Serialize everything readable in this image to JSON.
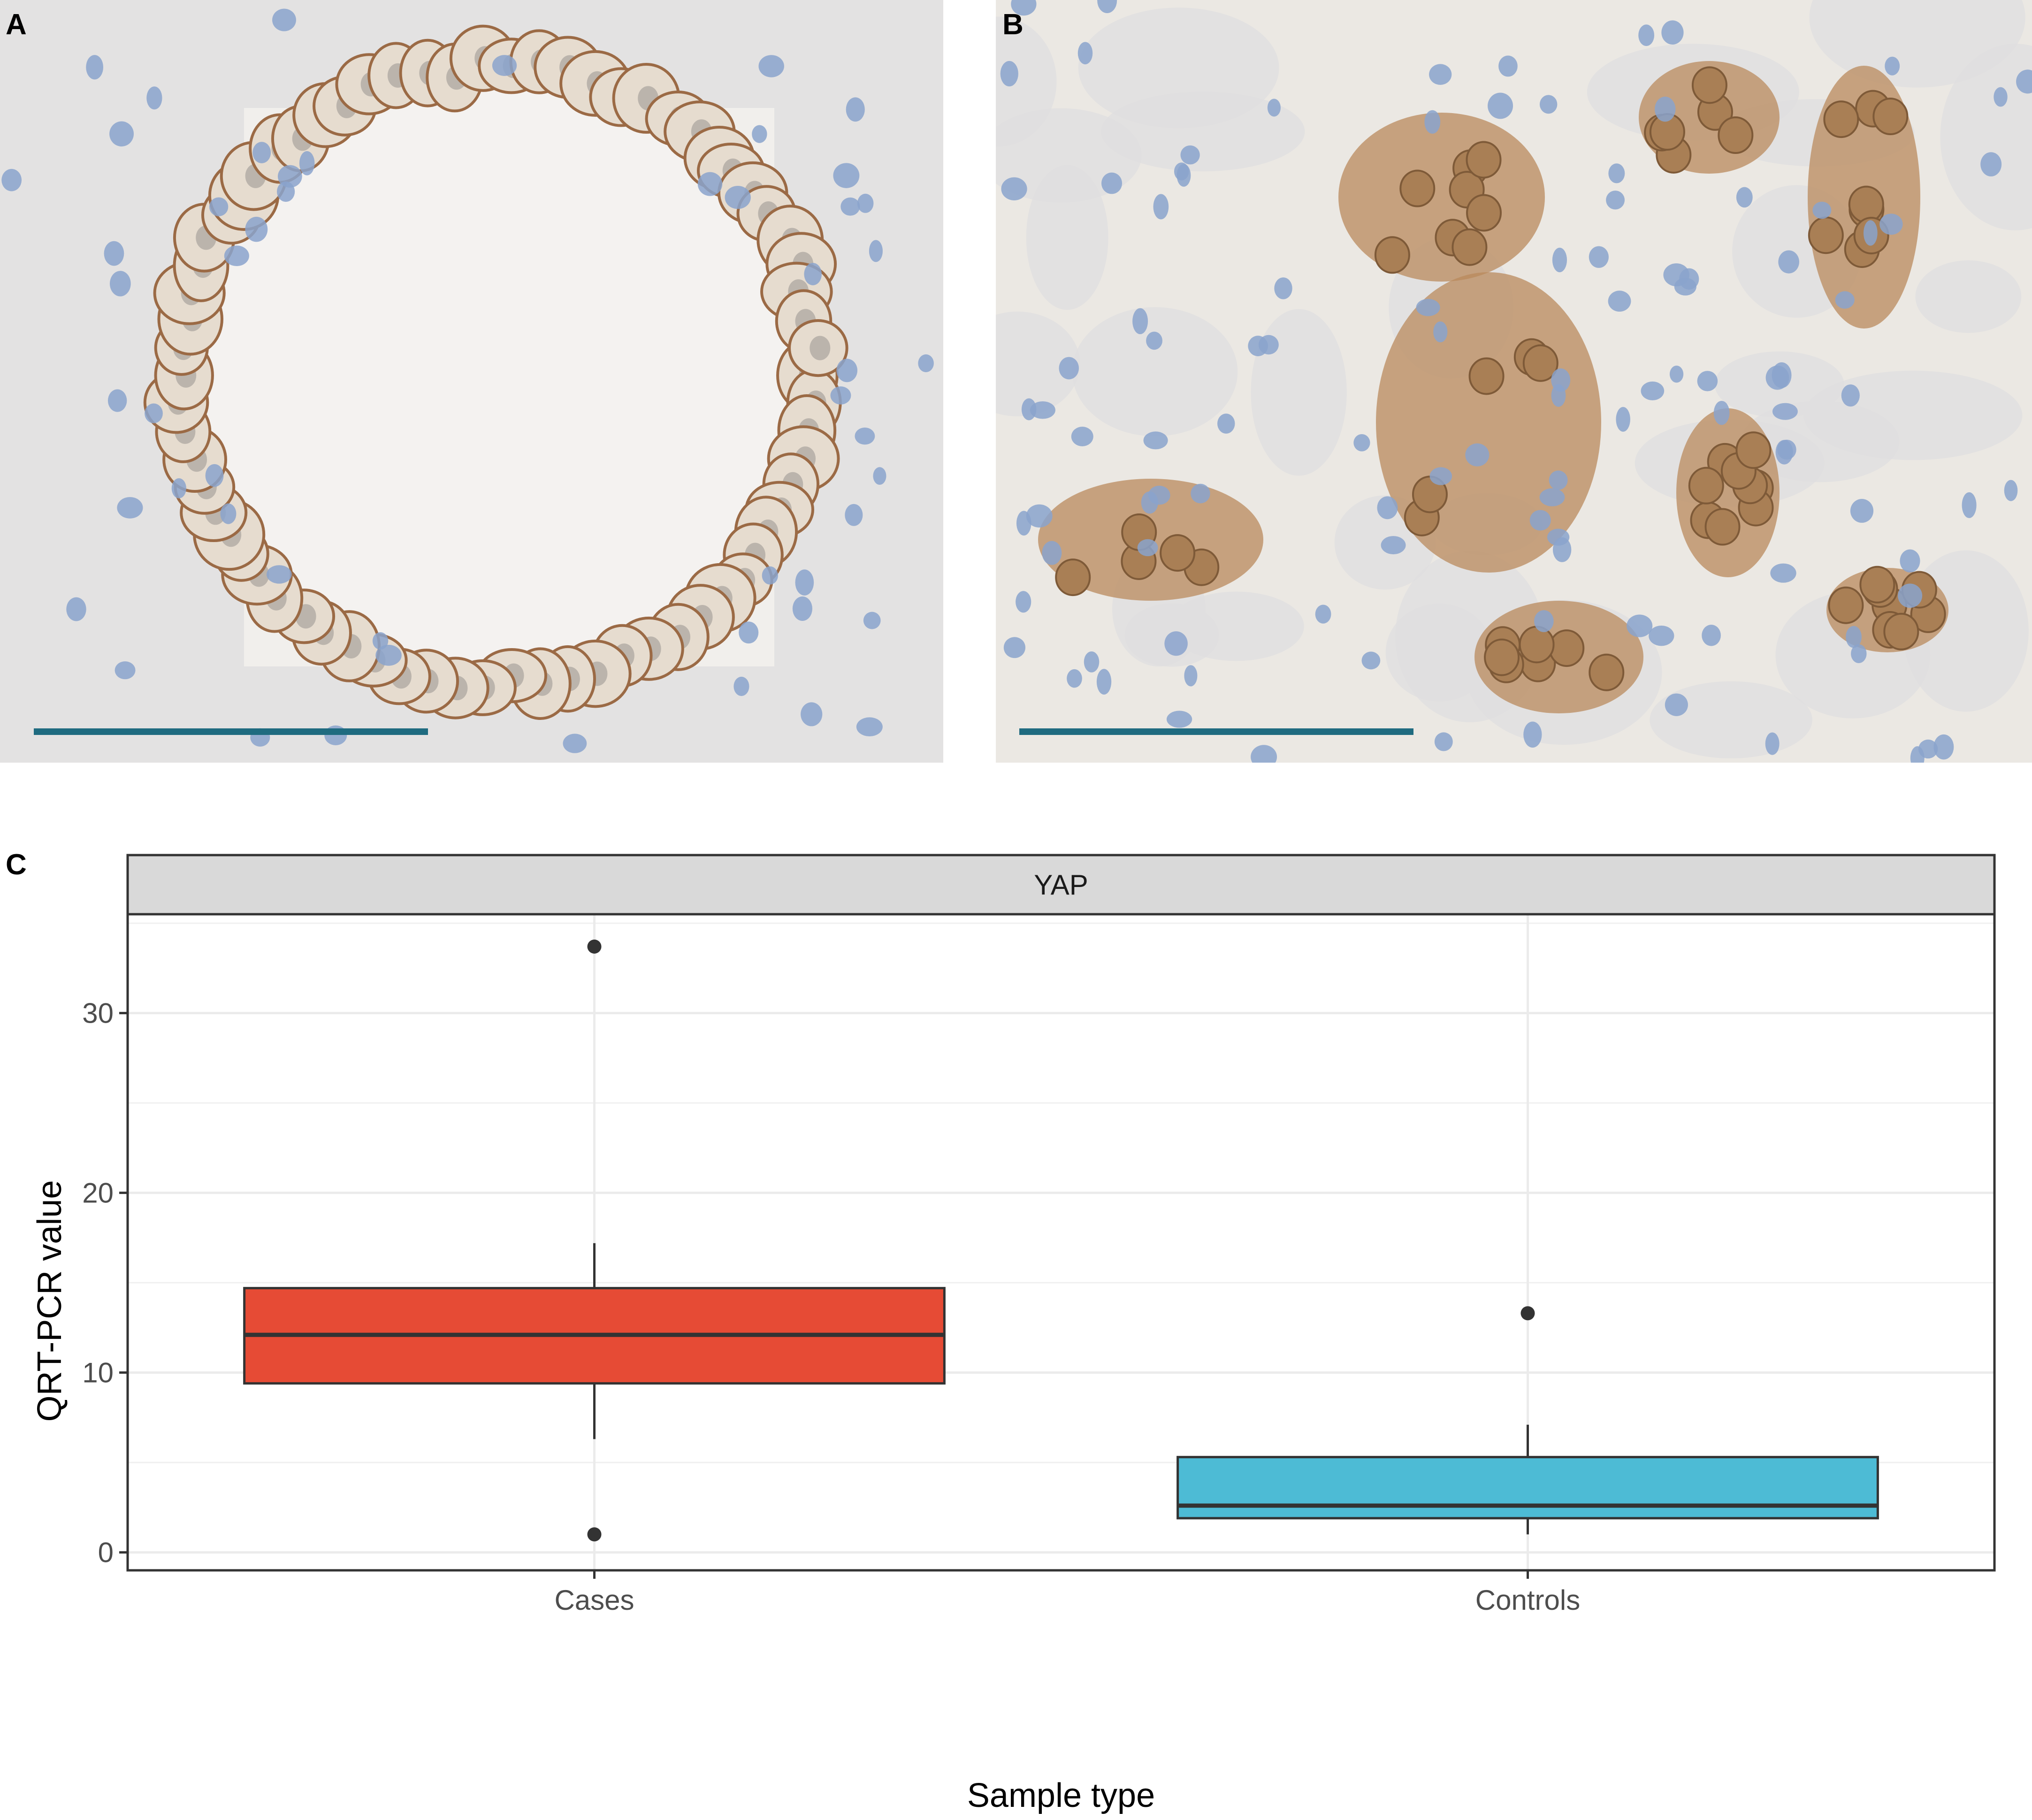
{
  "panels": {
    "a": {
      "label": "A"
    },
    "b": {
      "label": "B"
    },
    "c": {
      "label": "C"
    }
  },
  "colors": {
    "scale_bar": "#1f6b80",
    "cases_fill": "#e64b35",
    "controls_fill": "#4dbbd5",
    "strip_fill": "#d9d9d9",
    "membrane_stain": "#9b6a45",
    "cytoplasm_stain": "#b98a5c",
    "nucleus": "#8aa3cc"
  },
  "chart_data": {
    "type": "box",
    "facet": "YAP",
    "xlabel": "Sample type",
    "ylabel": "QRT-PCR value",
    "ylim": [
      -1,
      35.5
    ],
    "yticks": [
      0,
      10,
      20,
      30
    ],
    "categories": [
      "Cases",
      "Controls"
    ],
    "boxes": [
      {
        "name": "Cases",
        "q1": 9.4,
        "median": 12.1,
        "q3": 14.7,
        "whisker_low": 6.3,
        "whisker_high": 17.2,
        "outliers": [
          33.7,
          1.0
        ],
        "color": "#e64b35"
      },
      {
        "name": "Controls",
        "q1": 1.9,
        "median": 2.6,
        "q3": 5.3,
        "whisker_low": 1.0,
        "whisker_high": 7.1,
        "outliers": [
          13.3
        ],
        "color": "#4dbbd5"
      }
    ],
    "grid": true,
    "legend": "none"
  }
}
